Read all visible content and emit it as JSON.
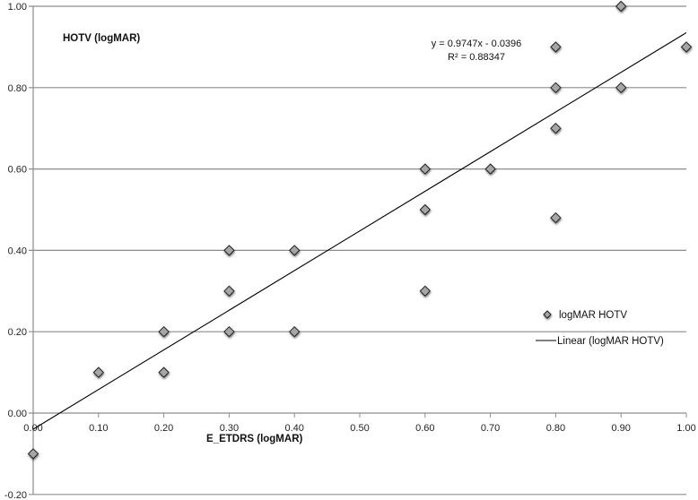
{
  "chart_data": {
    "type": "scatter",
    "title": "",
    "xlabel": "E_ETDRS (logMAR)",
    "ylabel": "HOTV (logMAR)",
    "xlim": [
      0.0,
      1.0
    ],
    "ylim": [
      -0.2,
      1.0
    ],
    "grid": {
      "horizontal": true,
      "vertical": false
    },
    "legend_position": "right-middle",
    "x_ticks": [
      "0.00",
      "0.10",
      "0.20",
      "0.30",
      "0.40",
      "0.50",
      "0.60",
      "0.70",
      "0.80",
      "0.90",
      "1.00"
    ],
    "y_ticks": [
      "-0.20",
      "0.00",
      "0.20",
      "0.40",
      "0.60",
      "0.80",
      "1.00"
    ],
    "series": [
      {
        "name": "logMAR HOTV",
        "marker": "diamond",
        "color": "#a6a6a6",
        "points": [
          [
            0.0,
            -0.1
          ],
          [
            0.1,
            0.1
          ],
          [
            0.2,
            0.1
          ],
          [
            0.2,
            0.2
          ],
          [
            0.3,
            0.4
          ],
          [
            0.3,
            0.3
          ],
          [
            0.3,
            0.2
          ],
          [
            0.4,
            0.4
          ],
          [
            0.4,
            0.2
          ],
          [
            0.6,
            0.6
          ],
          [
            0.6,
            0.5
          ],
          [
            0.6,
            0.3
          ],
          [
            0.7,
            0.6
          ],
          [
            0.8,
            0.9
          ],
          [
            0.8,
            0.8
          ],
          [
            0.8,
            0.7
          ],
          [
            0.8,
            0.48
          ],
          [
            0.9,
            1.0
          ],
          [
            0.9,
            0.8
          ],
          [
            1.0,
            0.9
          ]
        ]
      },
      {
        "name": "Linear (logMAR HOTV)",
        "type": "line",
        "color": "#000000",
        "slope": 0.9747,
        "intercept": -0.0396,
        "points": [
          [
            0.0,
            -0.0396
          ],
          [
            1.0,
            0.9351
          ]
        ]
      }
    ],
    "annotations": [
      {
        "text": "y = 0.9747x - 0.0396"
      },
      {
        "text": "R² = 0.88347"
      }
    ]
  },
  "labels": {
    "y_axis_title": "HOTV (logMAR)",
    "x_axis_title": "E_ETDRS (logMAR)",
    "equation": "y = 0.9747x - 0.0396",
    "r_squared": "R² = 0.88347",
    "legend_markers": "logMAR HOTV",
    "legend_line": "Linear (logMAR HOTV)"
  },
  "colors": {
    "marker_fill": "#a6a6a6",
    "marker_stroke": "#222222",
    "gridline": "#8c8c8c",
    "trendline": "#000000"
  }
}
